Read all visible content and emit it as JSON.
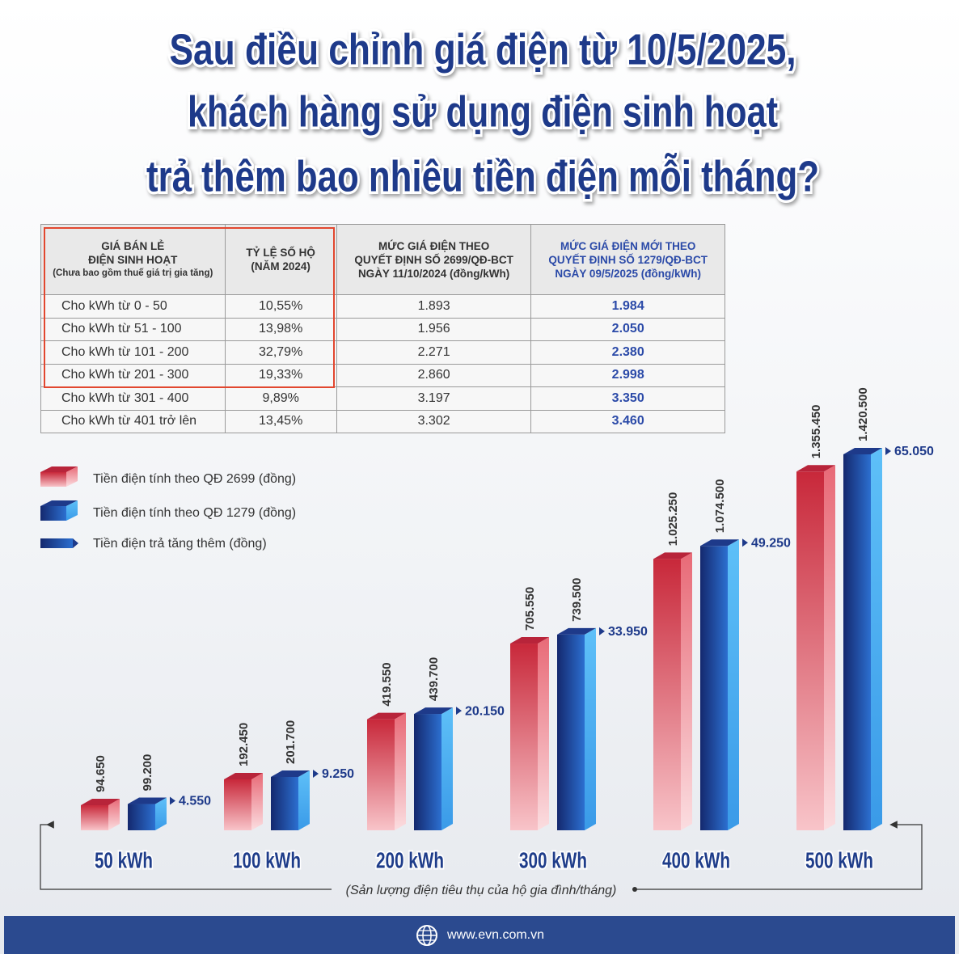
{
  "title": [
    "Sau điều chỉnh giá điện từ 10/5/2025,",
    "khách hàng sử dụng điện sinh hoạt",
    "trả thêm bao nhiêu tiền điện mỗi tháng?"
  ],
  "table": {
    "header": [
      [
        "GIÁ BÁN LẺ",
        "ĐIỆN SINH HOẠT",
        "(Chưa bao gồm thuế giá trị gia tăng)"
      ],
      [
        "TỶ LỆ SỐ HỘ",
        "(NĂM 2024)"
      ],
      [
        "MỨC GIÁ ĐIỆN THEO",
        "QUYẾT ĐỊNH SỐ 2699/QĐ-BCT",
        "NGÀY 11/10/2024 (đồng/kWh)"
      ],
      [
        "MỨC GIÁ ĐIỆN MỚI THEO",
        "QUYẾT ĐỊNH SỐ 1279/QĐ-BCT",
        "NGÀY 09/5/2025 (đồng/kWh)"
      ]
    ],
    "rows": [
      [
        "Cho kWh từ 0 - 50",
        "10,55%",
        "1.893",
        "1.984"
      ],
      [
        "Cho kWh từ 51 - 100",
        "13,98%",
        "1.956",
        "2.050"
      ],
      [
        "Cho kWh từ 101 - 200",
        "32,79%",
        "2.271",
        "2.380"
      ],
      [
        "Cho kWh từ 201 - 300",
        "19,33%",
        "2.860",
        "2.998"
      ],
      [
        "Cho kWh từ 301 - 400",
        "9,89%",
        "3.197",
        "3.350"
      ],
      [
        "Cho kWh từ 401 trở lên",
        "13,45%",
        "3.302",
        "3.460"
      ]
    ]
  },
  "chart_data": {
    "type": "bar",
    "categories": [
      "50 kWh",
      "100 kWh",
      "200 kWh",
      "300 kWh",
      "400 kWh",
      "500 kWh"
    ],
    "series": [
      {
        "name": "Tiền điện tính theo QĐ 2699 (đồng)",
        "color": "#d0303f",
        "values": [
          94650,
          192450,
          419550,
          705550,
          1025250,
          1355450
        ],
        "value_labels": [
          "94.650",
          "192.450",
          "419.550",
          "705.550",
          "1.025.250",
          "1.355.450"
        ]
      },
      {
        "name": "Tiền điện tính theo QĐ 1279 (đồng)",
        "color": "#2a8fe0",
        "values": [
          99200,
          201700,
          439700,
          739500,
          1074500,
          1420500
        ],
        "value_labels": [
          "99.200",
          "201.700",
          "439.700",
          "739.500",
          "1.074.500",
          "1.420.500"
        ]
      },
      {
        "name": "Tiền điện trả tăng thêm (đồng)",
        "color": "#1e3a8a",
        "values": [
          4550,
          9250,
          20150,
          33950,
          49250,
          65050
        ],
        "value_labels": [
          "4.550",
          "9.250",
          "20.150",
          "33.950",
          "49.250",
          "65.050"
        ]
      }
    ],
    "xlabel": "(Sản lượng điện tiêu thụ của hộ gia đình/tháng)"
  },
  "footer": {
    "url": "www.evn.com.vn"
  }
}
